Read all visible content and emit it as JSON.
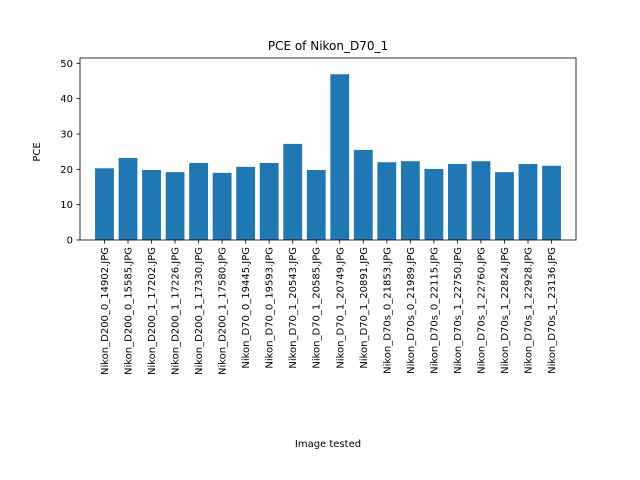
{
  "chart_data": {
    "type": "bar",
    "title": "PCE of Nikon_D70_1",
    "xlabel": "Image tested",
    "ylabel": "PCE",
    "ylim": [
      0,
      51.5
    ],
    "yticks": [
      0,
      10,
      20,
      30,
      40,
      50
    ],
    "grid": false,
    "bar_color": "#1f77b4",
    "categories": [
      "Nikon_D200_0_14902.JPG",
      "Nikon_D200_0_15585.JPG",
      "Nikon_D200_1_17202.JPG",
      "Nikon_D200_1_17226.JPG",
      "Nikon_D200_1_17330.JPG",
      "Nikon_D200_1_17580.JPG",
      "Nikon_D70_0_19445.JPG",
      "Nikon_D70_0_19593.JPG",
      "Nikon_D70_1_20543.JPG",
      "Nikon_D70_1_20585.JPG",
      "Nikon_D70_1_20749.JPG",
      "Nikon_D70_1_20891.JPG",
      "Nikon_D70s_0_21853.JPG",
      "Nikon_D70s_0_21989.JPG",
      "Nikon_D70s_0_22115.JPG",
      "Nikon_D70s_1_22750.JPG",
      "Nikon_D70s_1_22760.JPG",
      "Nikon_D70s_1_22824.JPG",
      "Nikon_D70s_1_22928.JPG",
      "Nikon_D70s_1_23136.JPG"
    ],
    "values": [
      20.3,
      23.2,
      19.8,
      19.2,
      21.8,
      19.0,
      20.7,
      21.8,
      27.2,
      19.8,
      46.9,
      25.5,
      22.0,
      22.3,
      20.1,
      21.5,
      22.3,
      19.2,
      21.5,
      21.0
    ]
  }
}
